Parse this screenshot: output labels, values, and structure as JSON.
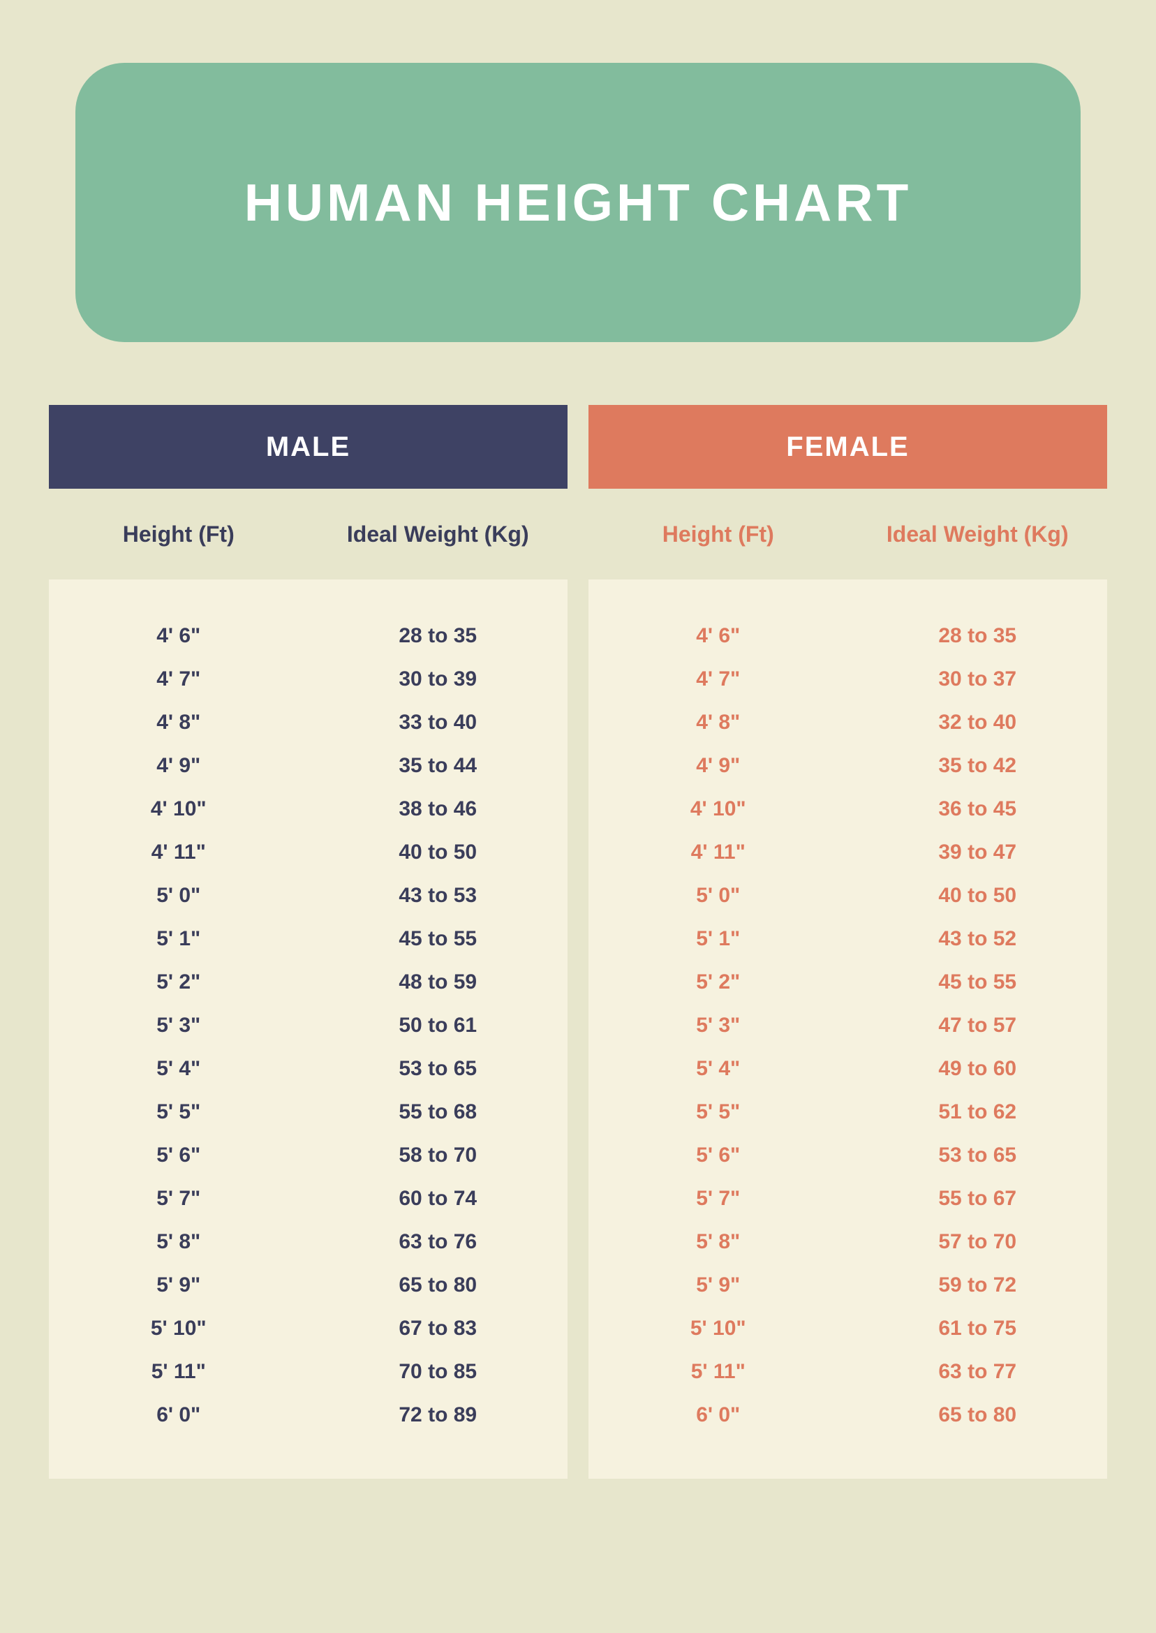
{
  "title": "HUMAN HEIGHT CHART",
  "colors": {
    "page_bg": "#e7e6cc",
    "title_bg": "#82bc9d",
    "title_text": "#ffffff",
    "male_header_bg": "#3e4264",
    "female_header_bg": "#de7a5e",
    "male_text": "#3a3d5a",
    "female_text": "#de7a5e",
    "rows_bg": "#f6f2df"
  },
  "male": {
    "label": "MALE",
    "col1_label": "Height (Ft)",
    "col2_label": "Ideal Weight (Kg)",
    "rows": [
      {
        "height": "4' 6\"",
        "weight": "28 to 35"
      },
      {
        "height": "4' 7\"",
        "weight": "30 to 39"
      },
      {
        "height": "4' 8\"",
        "weight": "33 to 40"
      },
      {
        "height": "4' 9\"",
        "weight": "35 to 44"
      },
      {
        "height": "4' 10\"",
        "weight": "38 to 46"
      },
      {
        "height": "4' 11\"",
        "weight": "40 to 50"
      },
      {
        "height": "5' 0\"",
        "weight": "43 to 53"
      },
      {
        "height": "5' 1\"",
        "weight": "45 to 55"
      },
      {
        "height": "5' 2\"",
        "weight": "48 to 59"
      },
      {
        "height": "5' 3\"",
        "weight": "50 to 61"
      },
      {
        "height": "5' 4\"",
        "weight": "53 to 65"
      },
      {
        "height": "5' 5\"",
        "weight": "55 to 68"
      },
      {
        "height": "5' 6\"",
        "weight": "58 to 70"
      },
      {
        "height": "5' 7\"",
        "weight": "60 to 74"
      },
      {
        "height": "5' 8\"",
        "weight": "63 to 76"
      },
      {
        "height": "5' 9\"",
        "weight": "65 to 80"
      },
      {
        "height": "5' 10\"",
        "weight": "67 to 83"
      },
      {
        "height": "5' 11\"",
        "weight": "70 to 85"
      },
      {
        "height": "6' 0\"",
        "weight": "72 to 89"
      }
    ]
  },
  "female": {
    "label": "FEMALE",
    "col1_label": "Height (Ft)",
    "col2_label": "Ideal Weight (Kg)",
    "rows": [
      {
        "height": "4' 6\"",
        "weight": "28 to 35"
      },
      {
        "height": "4' 7\"",
        "weight": "30 to 37"
      },
      {
        "height": "4' 8\"",
        "weight": "32 to 40"
      },
      {
        "height": "4' 9\"",
        "weight": "35 to 42"
      },
      {
        "height": "4' 10\"",
        "weight": "36 to 45"
      },
      {
        "height": "4' 11\"",
        "weight": "39 to 47"
      },
      {
        "height": "5' 0\"",
        "weight": "40 to 50"
      },
      {
        "height": "5' 1\"",
        "weight": "43 to 52"
      },
      {
        "height": "5' 2\"",
        "weight": "45 to 55"
      },
      {
        "height": "5' 3\"",
        "weight": "47 to 57"
      },
      {
        "height": "5' 4\"",
        "weight": "49 to 60"
      },
      {
        "height": "5' 5\"",
        "weight": "51 to 62"
      },
      {
        "height": "5' 6\"",
        "weight": "53 to 65"
      },
      {
        "height": "5' 7\"",
        "weight": "55 to 67"
      },
      {
        "height": "5' 8\"",
        "weight": "57 to 70"
      },
      {
        "height": "5' 9\"",
        "weight": "59 to 72"
      },
      {
        "height": "5' 10\"",
        "weight": "61 to 75"
      },
      {
        "height": "5' 11\"",
        "weight": "63 to 77"
      },
      {
        "height": "6' 0\"",
        "weight": "65 to 80"
      }
    ]
  }
}
